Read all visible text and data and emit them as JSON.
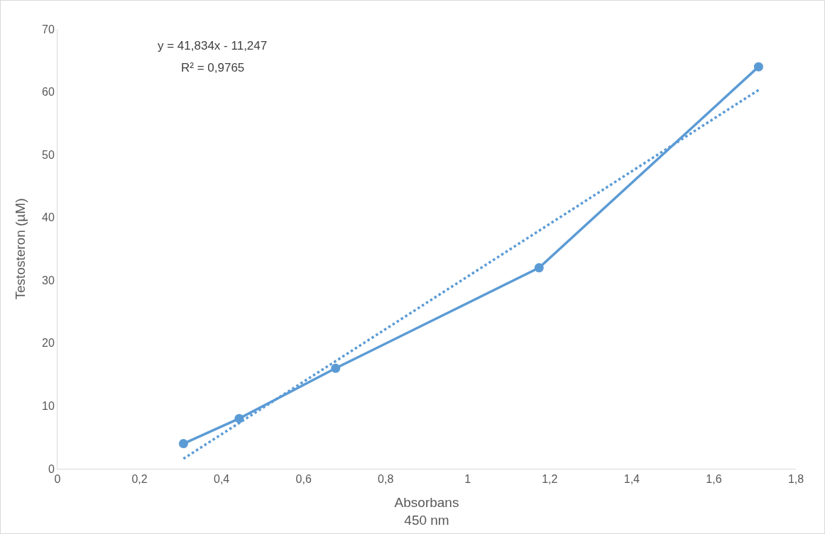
{
  "chart_data": {
    "type": "line",
    "xlabel": "Absorbans\n450 nm",
    "ylabel": "Testosteron (µM)",
    "annotations": [
      "y = 41,834x - 11,247",
      "R² = 0,9765"
    ],
    "xlim": [
      0,
      1.8
    ],
    "xticks": [
      0,
      {
        "value": 0.2,
        "label": "0,2"
      },
      {
        "value": 0.4,
        "label": "0,4"
      },
      {
        "value": 0.6,
        "label": "0,6"
      },
      {
        "value": 0.8,
        "label": "0,8"
      },
      1,
      {
        "value": 1.2,
        "label": "1,2"
      },
      {
        "value": 1.4,
        "label": "1,4"
      },
      {
        "value": 1.6,
        "label": "1,6"
      },
      {
        "value": 1.8,
        "label": "1,8"
      }
    ],
    "ylim": [
      0,
      70
    ],
    "yticks": [
      0,
      10,
      20,
      30,
      40,
      50,
      60,
      70
    ],
    "grid": false,
    "marker": "circle",
    "line_style": "solid",
    "series": [
      {
        "color": "#5b9bd5",
        "x": [
          0.307,
          0.443,
          0.678,
          1.174,
          1.709
        ],
        "values": [
          4,
          8,
          16,
          32,
          64
        ]
      },
      {
        "color": "#5b9bd5",
        "marker": "none",
        "line_style": "dotted",
        "x": [
          0.307,
          1.709
        ],
        "values": [
          1.6,
          60.3
        ]
      }
    ]
  }
}
